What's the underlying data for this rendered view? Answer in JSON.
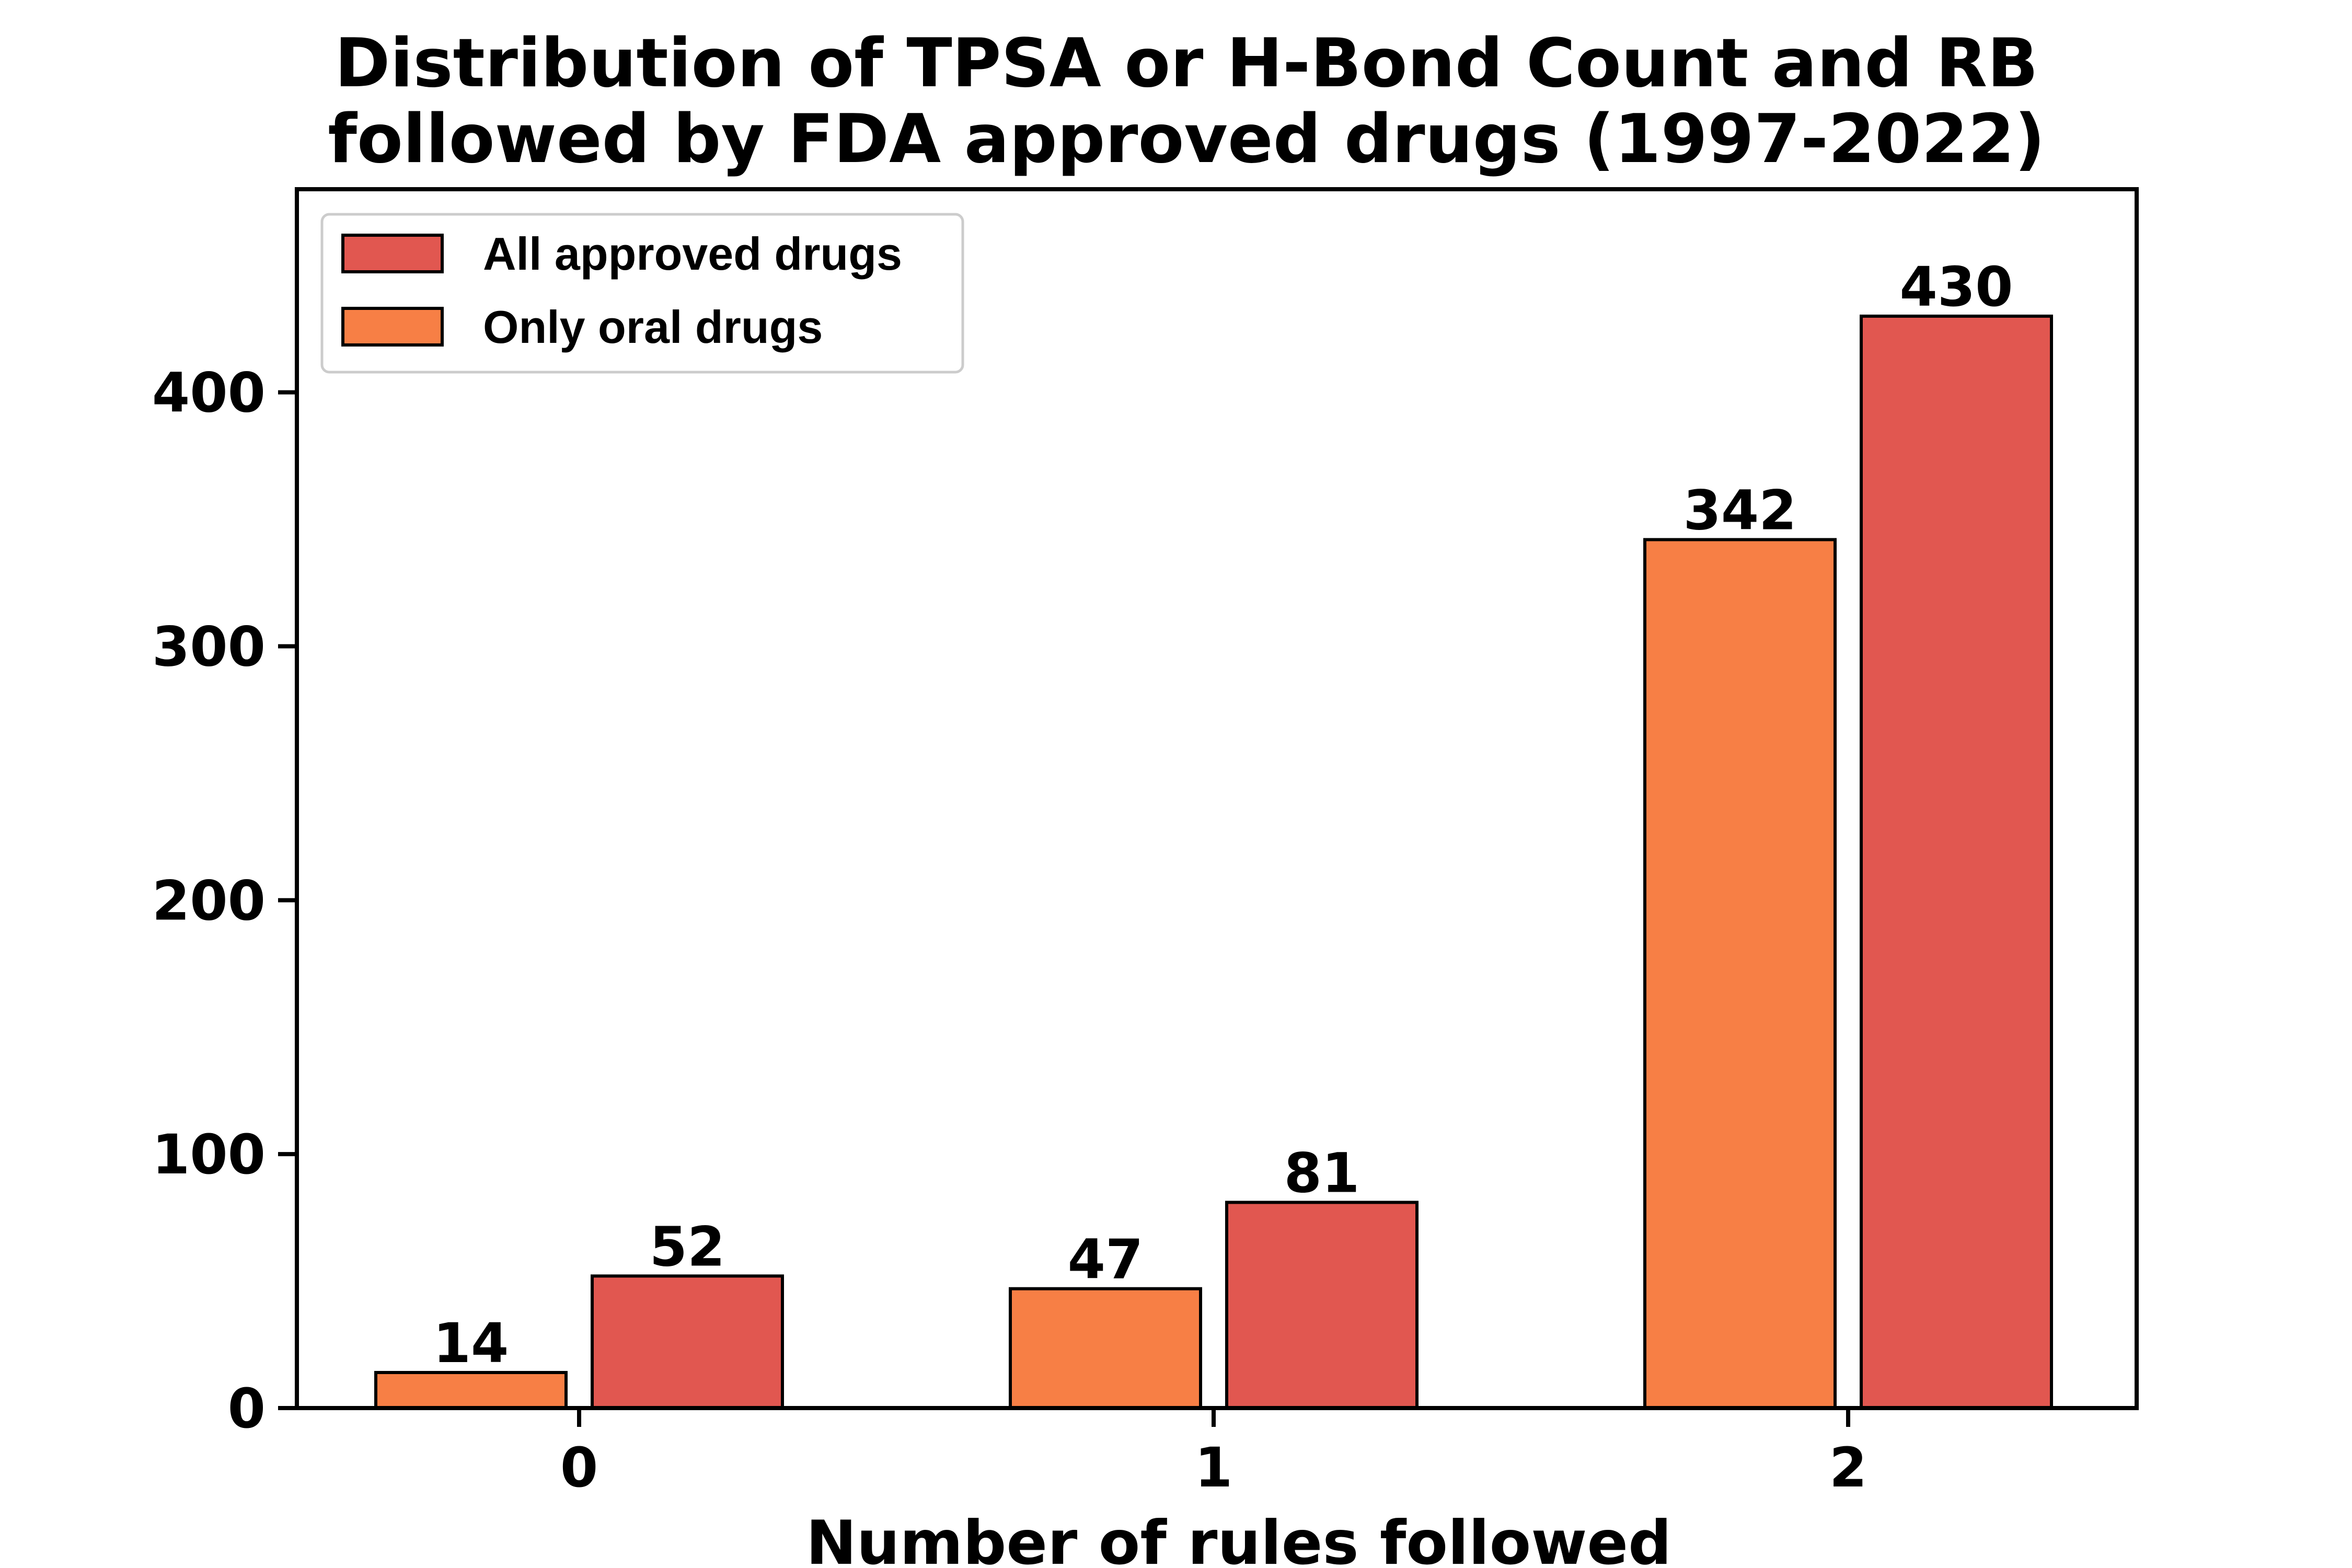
{
  "chart_data": {
    "type": "bar",
    "title": [
      "Distribution of TPSA or H-Bond Count and RB",
      "followed by FDA approved drugs (1997-2022)"
    ],
    "xlabel": "Number of rules followed",
    "ylabel": "",
    "categories": [
      "0",
      "1",
      "2"
    ],
    "ylim": [
      0,
      480
    ],
    "yticks": [
      0,
      100,
      200,
      300,
      400
    ],
    "grid": false,
    "legend_position": "top-left",
    "series": [
      {
        "name": "Only oral drugs",
        "values": [
          14,
          47,
          342
        ],
        "color": "#F77F45"
      },
      {
        "name": "All approved drugs",
        "values": [
          52,
          81,
          430
        ],
        "color": "#E15750"
      }
    ],
    "legend_order": [
      "All approved drugs",
      "Only oral drugs"
    ]
  }
}
